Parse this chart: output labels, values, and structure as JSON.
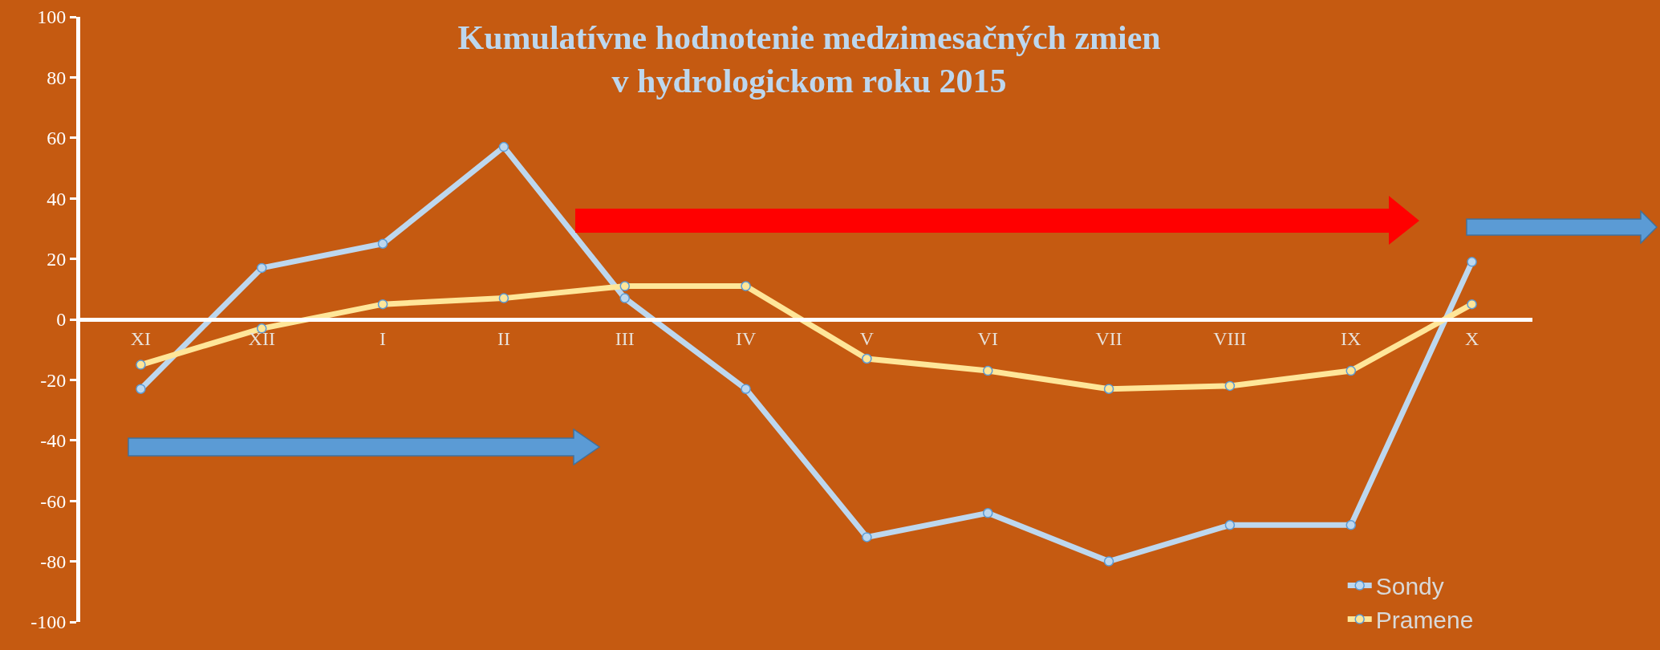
{
  "chart_data": {
    "type": "line",
    "title": "Kumulatívne hodnotenie medzimesačných zmien\nv hydrologickom roku 2015",
    "categories": [
      "XI",
      "XII",
      "I",
      "II",
      "III",
      "IV",
      "V",
      "VI",
      "VII",
      "VIII",
      "IX",
      "X"
    ],
    "series": [
      {
        "name": "Sondy",
        "color": "#bdd7ee",
        "values": [
          -23,
          17,
          25,
          57,
          7,
          -23,
          -72,
          -64,
          -80,
          -68,
          -68,
          19
        ]
      },
      {
        "name": "Pramene",
        "color": "#ffe699",
        "values": [
          -15,
          -3,
          5,
          7,
          11,
          11,
          -13,
          -17,
          -23,
          -22,
          -17,
          5
        ]
      }
    ],
    "ylim": [
      -100,
      100
    ],
    "yticks": [
      -100,
      -80,
      -60,
      -40,
      -20,
      0,
      20,
      40,
      60,
      80,
      100
    ],
    "grid": false,
    "legend": "bottom right",
    "marker": "circle",
    "line_style": "solid"
  }
}
